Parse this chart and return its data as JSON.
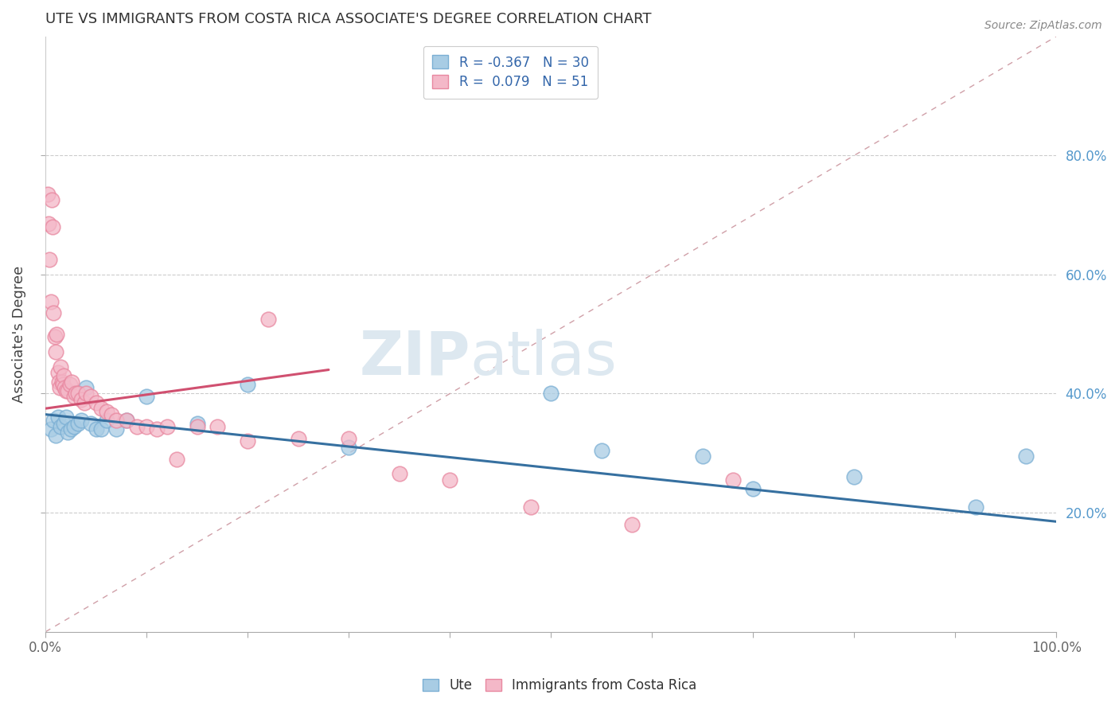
{
  "title": "UTE VS IMMIGRANTS FROM COSTA RICA ASSOCIATE'S DEGREE CORRELATION CHART",
  "source": "Source: ZipAtlas.com",
  "ylabel": "Associate's Degree",
  "legend_blue_label": "Ute",
  "legend_pink_label": "Immigrants from Costa Rica",
  "legend_blue_r": "R = -0.367",
  "legend_blue_n": "N = 30",
  "legend_pink_r": "R =  0.079",
  "legend_pink_n": "N = 51",
  "blue_color": "#a8cce4",
  "pink_color": "#f4b8c8",
  "blue_edge_color": "#7bafd4",
  "pink_edge_color": "#e888a0",
  "blue_line_color": "#3670a0",
  "pink_line_color": "#d05070",
  "diag_line_color": "#d0a0a8",
  "watermark_color": "#dde8f0",
  "blue_scatter_x": [
    0.005,
    0.008,
    0.01,
    0.012,
    0.015,
    0.018,
    0.02,
    0.022,
    0.025,
    0.028,
    0.032,
    0.035,
    0.04,
    0.045,
    0.05,
    0.055,
    0.06,
    0.07,
    0.08,
    0.1,
    0.15,
    0.2,
    0.3,
    0.5,
    0.55,
    0.65,
    0.7,
    0.8,
    0.92,
    0.97
  ],
  "blue_scatter_y": [
    0.34,
    0.355,
    0.33,
    0.36,
    0.345,
    0.35,
    0.36,
    0.335,
    0.34,
    0.345,
    0.35,
    0.355,
    0.41,
    0.35,
    0.34,
    0.34,
    0.355,
    0.34,
    0.355,
    0.395,
    0.35,
    0.415,
    0.31,
    0.4,
    0.305,
    0.295,
    0.24,
    0.26,
    0.21,
    0.295
  ],
  "pink_scatter_x": [
    0.002,
    0.003,
    0.004,
    0.005,
    0.006,
    0.007,
    0.008,
    0.009,
    0.01,
    0.011,
    0.012,
    0.013,
    0.014,
    0.015,
    0.016,
    0.017,
    0.018,
    0.019,
    0.02,
    0.022,
    0.024,
    0.026,
    0.028,
    0.03,
    0.032,
    0.035,
    0.038,
    0.04,
    0.045,
    0.05,
    0.055,
    0.06,
    0.065,
    0.07,
    0.08,
    0.09,
    0.1,
    0.11,
    0.12,
    0.13,
    0.15,
    0.17,
    0.2,
    0.22,
    0.25,
    0.3,
    0.35,
    0.4,
    0.48,
    0.58,
    0.68
  ],
  "pink_scatter_y": [
    0.735,
    0.685,
    0.625,
    0.555,
    0.725,
    0.68,
    0.535,
    0.495,
    0.47,
    0.5,
    0.435,
    0.42,
    0.41,
    0.445,
    0.42,
    0.415,
    0.43,
    0.41,
    0.405,
    0.405,
    0.415,
    0.42,
    0.395,
    0.4,
    0.4,
    0.39,
    0.385,
    0.4,
    0.395,
    0.385,
    0.375,
    0.37,
    0.365,
    0.355,
    0.355,
    0.345,
    0.345,
    0.34,
    0.345,
    0.29,
    0.345,
    0.345,
    0.32,
    0.525,
    0.325,
    0.325,
    0.265,
    0.255,
    0.21,
    0.18,
    0.255
  ],
  "blue_trend_x": [
    0.0,
    1.0
  ],
  "blue_trend_y": [
    0.365,
    0.185
  ],
  "pink_trend_x": [
    0.0,
    0.28
  ],
  "pink_trend_y": [
    0.375,
    0.44
  ],
  "diag_line_x": [
    0.0,
    1.0
  ],
  "diag_line_y": [
    0.0,
    1.0
  ],
  "xlim": [
    0.0,
    1.0
  ],
  "ylim": [
    0.0,
    1.0
  ],
  "xticks": [
    0.0,
    0.1,
    0.2,
    0.3,
    0.4,
    0.5,
    0.6,
    0.7,
    0.8,
    0.9,
    1.0
  ],
  "yticks": [
    0.2,
    0.4,
    0.6,
    0.8
  ],
  "figsize": [
    14.06,
    8.92
  ],
  "dpi": 100
}
